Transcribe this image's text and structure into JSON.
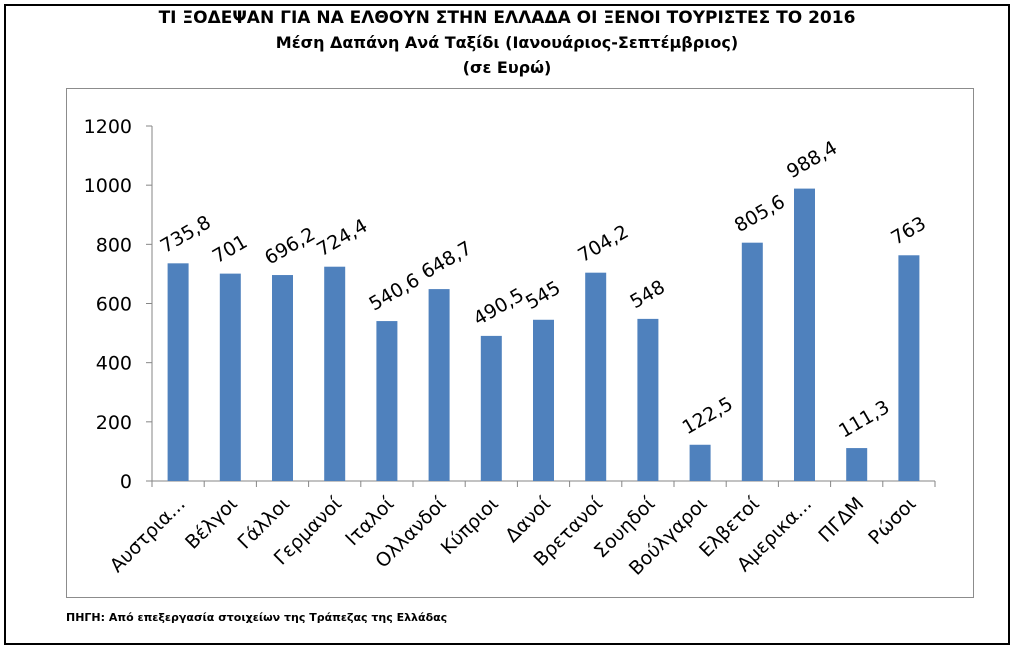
{
  "chart_data": {
    "type": "bar",
    "title": "ΤΙ ΞΟΔΕΨΑΝ ΓΙΑ ΝΑ ΕΛΘΟΥΝ ΣΤΗΝ ΕΛΛΑΔΑ ΟΙ ΞΕΝΟΙ ΤΟΥΡΙΣΤΕΣ ΤΟ 2016",
    "subtitle": "Μέση Δαπάνη Ανά Ταξίδι (Ιανουάριος-Σεπτέμβριος)",
    "subtitle2": "(σε Ευρώ)",
    "categories": [
      "Αυστρια...",
      "Βέλγοι",
      "Γάλλοι",
      "Γερμανοί",
      "Ιταλοί",
      "Ολλανδοί",
      "Κύπριοι",
      "Δανοί",
      "Βρετανοί",
      "Σουηδοί",
      "Βούλγαροι",
      "Ελβετοί",
      "Αμερικα...",
      "ΠΓΔΜ",
      "Ρώσοι"
    ],
    "values": [
      735.8,
      701,
      696.2,
      724.4,
      540.6,
      648.7,
      490.5,
      545,
      704.2,
      548,
      122.5,
      805.6,
      988.4,
      111.3,
      763
    ],
    "value_labels": [
      "735,8",
      "701",
      "696,2",
      "724,4",
      "540,6",
      "648,7",
      "490,5",
      "545",
      "704,2",
      "548",
      "122,5",
      "805,6",
      "988,4",
      "111,3",
      "763"
    ],
    "ylim": [
      0,
      1200
    ],
    "yticks": [
      0,
      200,
      400,
      600,
      800,
      1000,
      1200
    ],
    "ytick_labels": [
      "0",
      "200",
      "400",
      "600",
      "800",
      "1000",
      "1200"
    ],
    "xlabel": "",
    "ylabel": "",
    "grid": false,
    "legend": "none",
    "bar_color": "#4f81bd",
    "source": "ΠΗΓΗ: Από επεξεργασία στοιχείων της Τράπεζας της Ελλάδας"
  }
}
